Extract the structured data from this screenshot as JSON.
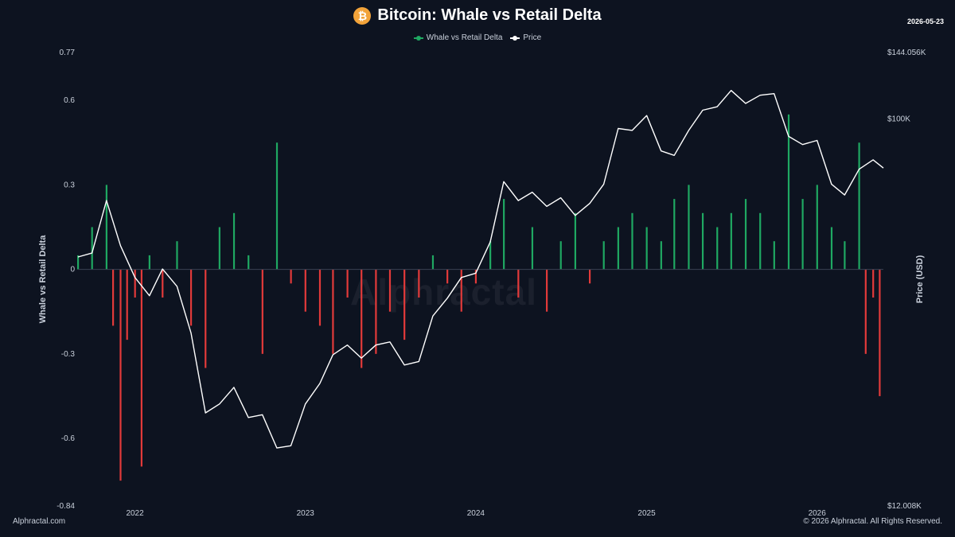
{
  "header": {
    "title": "Bitcoin: Whale vs Retail Delta",
    "date": "2026-05-23",
    "logo_glyph": "₿"
  },
  "footer": {
    "source": "Alphractal.com",
    "copyright": "© 2026 Alphractal. All Rights Reserved."
  },
  "watermark": "Alphractal",
  "colors": {
    "background": "#0d1320",
    "positive": "#1fa862",
    "negative": "#e23a3a",
    "price": "#ffffff",
    "logo": "#f2a33a"
  },
  "chart_data": {
    "type": "bar",
    "title": "Bitcoin: Whale vs Retail Delta",
    "ylabel": "Whale vs Retail Delta",
    "y2label": "Price (USD)",
    "ylim": [
      -0.84,
      0.77
    ],
    "y_ticks": [
      0.77,
      0.6,
      0.3,
      0,
      -0.3,
      -0.6,
      -0.84
    ],
    "y_tick_labels": [
      "0.77",
      "0.6",
      "0.3",
      "0",
      "-0.3",
      "-0.6",
      "-0.84"
    ],
    "y2_scale": "log",
    "y2lim": [
      12008,
      144056
    ],
    "y2_ticks": [
      144056,
      100000,
      12008
    ],
    "y2_tick_labels": [
      "$144.056K",
      "$100K",
      "$12.008K"
    ],
    "x_ticks": [
      "2022",
      "2023",
      "2024",
      "2025",
      "2026"
    ],
    "x_tick_dates": [
      "2022-01-01",
      "2023-01-01",
      "2024-01-01",
      "2025-01-01",
      "2026-01-01"
    ],
    "x_range": [
      "2021-09-01",
      "2026-05-23"
    ],
    "legend_position": "top-center",
    "grid": false,
    "series": [
      {
        "name": "Whale vs Retail Delta",
        "type": "bar",
        "color_positive": "#1fa862",
        "color_negative": "#e23a3a",
        "points": [
          [
            "2021-09-01",
            0.05
          ],
          [
            "2021-10-01",
            0.15
          ],
          [
            "2021-11-01",
            0.3
          ],
          [
            "2021-11-15",
            -0.2
          ],
          [
            "2021-12-01",
            -0.75
          ],
          [
            "2021-12-15",
            -0.25
          ],
          [
            "2022-01-01",
            -0.1
          ],
          [
            "2022-01-15",
            -0.7
          ],
          [
            "2022-02-01",
            0.05
          ],
          [
            "2022-03-01",
            -0.1
          ],
          [
            "2022-04-01",
            0.1
          ],
          [
            "2022-05-01",
            -0.2
          ],
          [
            "2022-06-01",
            -0.35
          ],
          [
            "2022-07-01",
            0.15
          ],
          [
            "2022-08-01",
            0.2
          ],
          [
            "2022-09-01",
            0.05
          ],
          [
            "2022-10-01",
            -0.3
          ],
          [
            "2022-11-01",
            0.45
          ],
          [
            "2022-12-01",
            -0.05
          ],
          [
            "2023-01-01",
            -0.15
          ],
          [
            "2023-02-01",
            -0.2
          ],
          [
            "2023-03-01",
            -0.3
          ],
          [
            "2023-04-01",
            -0.1
          ],
          [
            "2023-05-01",
            -0.35
          ],
          [
            "2023-06-01",
            -0.3
          ],
          [
            "2023-07-01",
            -0.15
          ],
          [
            "2023-08-01",
            -0.25
          ],
          [
            "2023-09-01",
            -0.1
          ],
          [
            "2023-10-01",
            0.05
          ],
          [
            "2023-11-01",
            -0.05
          ],
          [
            "2023-12-01",
            -0.15
          ],
          [
            "2024-01-01",
            -0.05
          ],
          [
            "2024-02-01",
            0.1
          ],
          [
            "2024-03-01",
            0.25
          ],
          [
            "2024-04-01",
            -0.1
          ],
          [
            "2024-05-01",
            0.15
          ],
          [
            "2024-06-01",
            -0.15
          ],
          [
            "2024-07-01",
            0.1
          ],
          [
            "2024-08-01",
            0.2
          ],
          [
            "2024-09-01",
            -0.05
          ],
          [
            "2024-10-01",
            0.1
          ],
          [
            "2024-11-01",
            0.15
          ],
          [
            "2024-12-01",
            0.2
          ],
          [
            "2025-01-01",
            0.15
          ],
          [
            "2025-02-01",
            0.1
          ],
          [
            "2025-03-01",
            0.25
          ],
          [
            "2025-04-01",
            0.3
          ],
          [
            "2025-05-01",
            0.2
          ],
          [
            "2025-06-01",
            0.15
          ],
          [
            "2025-07-01",
            0.2
          ],
          [
            "2025-08-01",
            0.25
          ],
          [
            "2025-09-01",
            0.2
          ],
          [
            "2025-10-01",
            0.1
          ],
          [
            "2025-11-01",
            0.55
          ],
          [
            "2025-12-01",
            0.25
          ],
          [
            "2026-01-01",
            0.3
          ],
          [
            "2026-02-01",
            0.15
          ],
          [
            "2026-03-01",
            0.1
          ],
          [
            "2026-04-01",
            0.45
          ],
          [
            "2026-04-15",
            -0.3
          ],
          [
            "2026-05-01",
            -0.1
          ],
          [
            "2026-05-15",
            -0.45
          ]
        ]
      },
      {
        "name": "Price",
        "type": "line",
        "color": "#ffffff",
        "points": [
          [
            "2021-09-01",
            47000
          ],
          [
            "2021-10-01",
            48000
          ],
          [
            "2021-11-01",
            64000
          ],
          [
            "2021-12-01",
            50000
          ],
          [
            "2022-01-01",
            42000
          ],
          [
            "2022-02-01",
            38000
          ],
          [
            "2022-03-01",
            44000
          ],
          [
            "2022-04-01",
            40000
          ],
          [
            "2022-05-01",
            31000
          ],
          [
            "2022-06-01",
            20000
          ],
          [
            "2022-07-01",
            21000
          ],
          [
            "2022-08-01",
            23000
          ],
          [
            "2022-09-01",
            19500
          ],
          [
            "2022-10-01",
            19800
          ],
          [
            "2022-11-01",
            16500
          ],
          [
            "2022-12-01",
            16700
          ],
          [
            "2023-01-01",
            21000
          ],
          [
            "2023-02-01",
            23500
          ],
          [
            "2023-03-01",
            27500
          ],
          [
            "2023-04-01",
            29000
          ],
          [
            "2023-05-01",
            27000
          ],
          [
            "2023-06-01",
            29000
          ],
          [
            "2023-07-01",
            29500
          ],
          [
            "2023-08-01",
            26000
          ],
          [
            "2023-09-01",
            26500
          ],
          [
            "2023-10-01",
            34000
          ],
          [
            "2023-11-01",
            37500
          ],
          [
            "2023-12-01",
            42000
          ],
          [
            "2024-01-01",
            43000
          ],
          [
            "2024-02-01",
            51000
          ],
          [
            "2024-03-01",
            71000
          ],
          [
            "2024-04-01",
            64000
          ],
          [
            "2024-05-01",
            67000
          ],
          [
            "2024-06-01",
            62000
          ],
          [
            "2024-07-01",
            65000
          ],
          [
            "2024-08-01",
            59000
          ],
          [
            "2024-09-01",
            63000
          ],
          [
            "2024-10-01",
            70000
          ],
          [
            "2024-11-01",
            95000
          ],
          [
            "2024-12-01",
            94000
          ],
          [
            "2025-01-01",
            102000
          ],
          [
            "2025-02-01",
            84000
          ],
          [
            "2025-03-01",
            82000
          ],
          [
            "2025-04-01",
            94000
          ],
          [
            "2025-05-01",
            105000
          ],
          [
            "2025-06-01",
            107000
          ],
          [
            "2025-07-01",
            117000
          ],
          [
            "2025-08-01",
            109000
          ],
          [
            "2025-09-01",
            114000
          ],
          [
            "2025-10-01",
            115000
          ],
          [
            "2025-11-01",
            91000
          ],
          [
            "2025-12-01",
            87000
          ],
          [
            "2026-01-01",
            89000
          ],
          [
            "2026-02-01",
            70000
          ],
          [
            "2026-03-01",
            66000
          ],
          [
            "2026-04-01",
            76000
          ],
          [
            "2026-05-01",
            80000
          ],
          [
            "2026-05-23",
            76500
          ]
        ]
      }
    ]
  }
}
